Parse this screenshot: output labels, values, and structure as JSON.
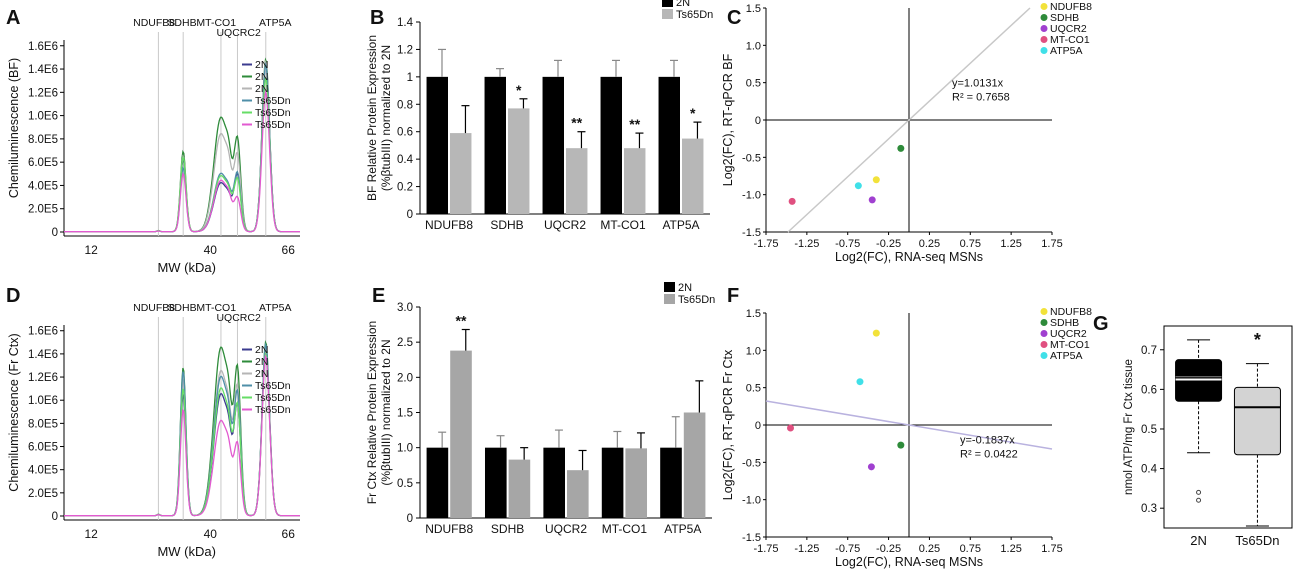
{
  "figure": {
    "panel_letters": [
      "A",
      "B",
      "C",
      "D",
      "E",
      "F",
      "G"
    ]
  },
  "chart_data": [
    {
      "id": "A",
      "type": "line",
      "ylabel": "Chemiluminescence (BF)",
      "xlabel": "MW (kDa)",
      "xticks": [
        "12",
        "40",
        "66"
      ],
      "yticks": [
        "0",
        "2.0E5",
        "4.0E5",
        "6.0E5",
        "8.0E5",
        "1.0E6",
        "1.2E6",
        "1.4E6",
        "1.6E6"
      ],
      "ylim": [
        0,
        1600000
      ],
      "peak_labels": [
        "NDUFB8",
        "SDHB",
        "MT-CO1",
        "UQCRC2",
        "ATP5A"
      ],
      "legend": [
        "2N",
        "2N",
        "2N",
        "Ts65Dn",
        "Ts65Dn",
        "Ts65Dn"
      ],
      "series_colors": [
        "#3b3b8f",
        "#2e8b3a",
        "#b5b5b5",
        "#4f8fa8",
        "#66dd66",
        "#e25ad0"
      ],
      "peak_heights": [
        [
          0.008,
          0.62,
          0.42,
          0.47,
          1.45
        ],
        [
          0.01,
          0.69,
          0.98,
          0.75,
          1.48
        ],
        [
          0.008,
          0.65,
          0.84,
          0.62,
          1.46
        ],
        [
          0.008,
          0.55,
          0.5,
          0.48,
          1.44
        ],
        [
          0.009,
          0.64,
          0.48,
          0.43,
          1.32
        ],
        [
          0.006,
          0.5,
          0.44,
          0.27,
          1.2
        ]
      ]
    },
    {
      "id": "B",
      "type": "bar",
      "ylabel": "BF Relative Protein Expression",
      "ylabel2": "(%βtubIII) normalized  to 2N",
      "categories": [
        "NDUFB8",
        "SDHB",
        "UQCR2",
        "MT-CO1",
        "ATP5A"
      ],
      "series": [
        {
          "name": "2N",
          "values": [
            1.0,
            1.0,
            1.0,
            1.0,
            1.0
          ],
          "errors": [
            0.2,
            0.06,
            0.12,
            0.12,
            0.12
          ],
          "color": "#000000"
        },
        {
          "name": "Ts65Dn",
          "values": [
            0.59,
            0.77,
            0.48,
            0.48,
            0.55
          ],
          "errors": [
            0.2,
            0.07,
            0.12,
            0.11,
            0.12
          ],
          "color": "#b7b7b7"
        }
      ],
      "significance": [
        "",
        "*",
        "**",
        "**",
        "*"
      ],
      "ylim": [
        0,
        1.4
      ],
      "yticks": [
        "0",
        "0.2",
        "0.4",
        "0.6",
        "0.8",
        "1",
        "1.2",
        "1.4"
      ]
    },
    {
      "id": "C",
      "type": "scatter",
      "xlabel": "Log2(FC), RNA-seq MSNs",
      "ylabel": "Log2(FC), RT-qPCR BF",
      "xlim": [
        -1.75,
        1.75
      ],
      "ylim": [
        -1.5,
        1.5
      ],
      "xticks": [
        "-1.75",
        "-1.25",
        "-0.75",
        "-0.25",
        "0.25",
        "0.75",
        "1.25",
        "1.75"
      ],
      "yticks": [
        "-1.5",
        "-1.0",
        "-0.5",
        "0",
        "0.5",
        "1.0",
        "1.5"
      ],
      "points": [
        {
          "name": "NDUFB8",
          "x": -0.4,
          "y": -0.8,
          "color": "#f2e23a"
        },
        {
          "name": "SDHB",
          "x": -0.1,
          "y": -0.38,
          "color": "#2e8b3a"
        },
        {
          "name": "UQCR2",
          "x": -0.45,
          "y": -1.07,
          "color": "#a040d0"
        },
        {
          "name": "MT-CO1",
          "x": -1.43,
          "y": -1.09,
          "color": "#e05080"
        },
        {
          "name": "ATP5A",
          "x": -0.62,
          "y": -0.88,
          "color": "#40e0e8"
        }
      ],
      "fit_slope": 1.0131,
      "fit_line_color": "#c8c8c8",
      "annotation_eq": "y=1.0131x",
      "annotation_r2": "R² = 0.7658"
    },
    {
      "id": "D",
      "type": "line",
      "ylabel": "Chemiluminescence (Fr Ctx)",
      "xlabel": "MW (kDa)",
      "xticks": [
        "12",
        "40",
        "66"
      ],
      "yticks": [
        "0",
        "2.0E5",
        "4.0E5",
        "6.0E5",
        "8.0E5",
        "1.0E6",
        "1.2E6",
        "1.4E6",
        "1.6E6"
      ],
      "ylim": [
        0,
        1600000
      ],
      "peak_labels": [
        "NDUFB8",
        "SDHB",
        "MT-CO1",
        "UQCRC2",
        "ATP5A"
      ],
      "legend": [
        "2N",
        "2N",
        "2N",
        "Ts65Dn",
        "Ts65Dn",
        "Ts65Dn"
      ],
      "series_colors": [
        "#3b3b8f",
        "#2e8b3a",
        "#b5b5b5",
        "#4f8fa8",
        "#66dd66",
        "#e25ad0"
      ],
      "peak_heights": [
        [
          0.01,
          1.05,
          1.05,
          0.9,
          1.45
        ],
        [
          0.012,
          1.28,
          1.45,
          1.2,
          1.5
        ],
        [
          0.01,
          1.18,
          1.25,
          1.05,
          1.45
        ],
        [
          0.01,
          1.25,
          1.2,
          1.0,
          1.48
        ],
        [
          0.01,
          1.1,
          1.1,
          0.9,
          1.4
        ],
        [
          0.008,
          0.92,
          0.82,
          0.58,
          1.38
        ]
      ]
    },
    {
      "id": "E",
      "type": "bar",
      "ylabel": "Fr Ctx Relative Protein Expression",
      "ylabel2": "(%βtubIII) normalized  to 2N",
      "categories": [
        "NDUFB8",
        "SDHB",
        "UQCR2",
        "MT-CO1",
        "ATP5A"
      ],
      "series": [
        {
          "name": "2N",
          "values": [
            1.0,
            1.0,
            1.0,
            1.0,
            1.0
          ],
          "errors": [
            0.22,
            0.17,
            0.25,
            0.23,
            0.44
          ],
          "color": "#000000"
        },
        {
          "name": "Ts65Dn",
          "values": [
            2.38,
            0.83,
            0.68,
            0.99,
            1.5
          ],
          "errors": [
            0.3,
            0.17,
            0.28,
            0.22,
            0.45
          ],
          "color": "#a6a6a6"
        }
      ],
      "significance": [
        "**",
        "",
        "",
        "",
        ""
      ],
      "ylim": [
        0,
        3.0
      ],
      "yticks": [
        "0",
        "0.5",
        "1.0",
        "1.5",
        "2.0",
        "2.5",
        "3.0"
      ]
    },
    {
      "id": "F",
      "type": "scatter",
      "xlabel": "Log2(FC), RNA-seq MSNs",
      "ylabel": "Log2(FC), RT-qPCR Fr Ctx",
      "xlim": [
        -1.75,
        1.75
      ],
      "ylim": [
        -1.5,
        1.5
      ],
      "xticks": [
        "-1.75",
        "-1.25",
        "-0.75",
        "-0.25",
        "0.25",
        "0.75",
        "1.25",
        "1.75"
      ],
      "yticks": [
        "-1.5",
        "-1.0",
        "-0.5",
        "0",
        "0.5",
        "1.0",
        "1.5"
      ],
      "points": [
        {
          "name": "NDUFB8",
          "x": -0.4,
          "y": 1.23,
          "color": "#f2e23a"
        },
        {
          "name": "SDHB",
          "x": -0.1,
          "y": -0.27,
          "color": "#2e8b3a"
        },
        {
          "name": "UQCR2",
          "x": -0.46,
          "y": -0.56,
          "color": "#a040d0"
        },
        {
          "name": "MT-CO1",
          "x": -1.45,
          "y": -0.04,
          "color": "#e05080"
        },
        {
          "name": "ATP5A",
          "x": -0.6,
          "y": 0.58,
          "color": "#40e0e8"
        }
      ],
      "fit_slope": -0.1837,
      "fit_line_color": "#b9b2df",
      "annotation_eq": "y=-0.1837x",
      "annotation_r2": "R² = 0.0422"
    },
    {
      "id": "G",
      "type": "boxplot",
      "ylabel": "nmol ATP/mg Fr Ctx  tissue",
      "categories": [
        "2N",
        "Ts65Dn"
      ],
      "ylim": [
        0.25,
        0.76
      ],
      "yticks": [
        "0.3",
        "0.4",
        "0.5",
        "0.6",
        "0.7"
      ],
      "boxes": [
        {
          "name": "2N",
          "whisker_low": 0.44,
          "q1": 0.57,
          "median": 0.625,
          "mean": 0.632,
          "q3": 0.675,
          "whisker_high": 0.725,
          "outliers": [
            0.34,
            0.32
          ],
          "fill": "#000000"
        },
        {
          "name": "Ts65Dn",
          "whisker_low": 0.255,
          "q1": 0.435,
          "median": 0.555,
          "q3": 0.605,
          "whisker_high": 0.665,
          "outliers": [],
          "fill": "#d3d3d3"
        }
      ],
      "significance": "*"
    }
  ]
}
